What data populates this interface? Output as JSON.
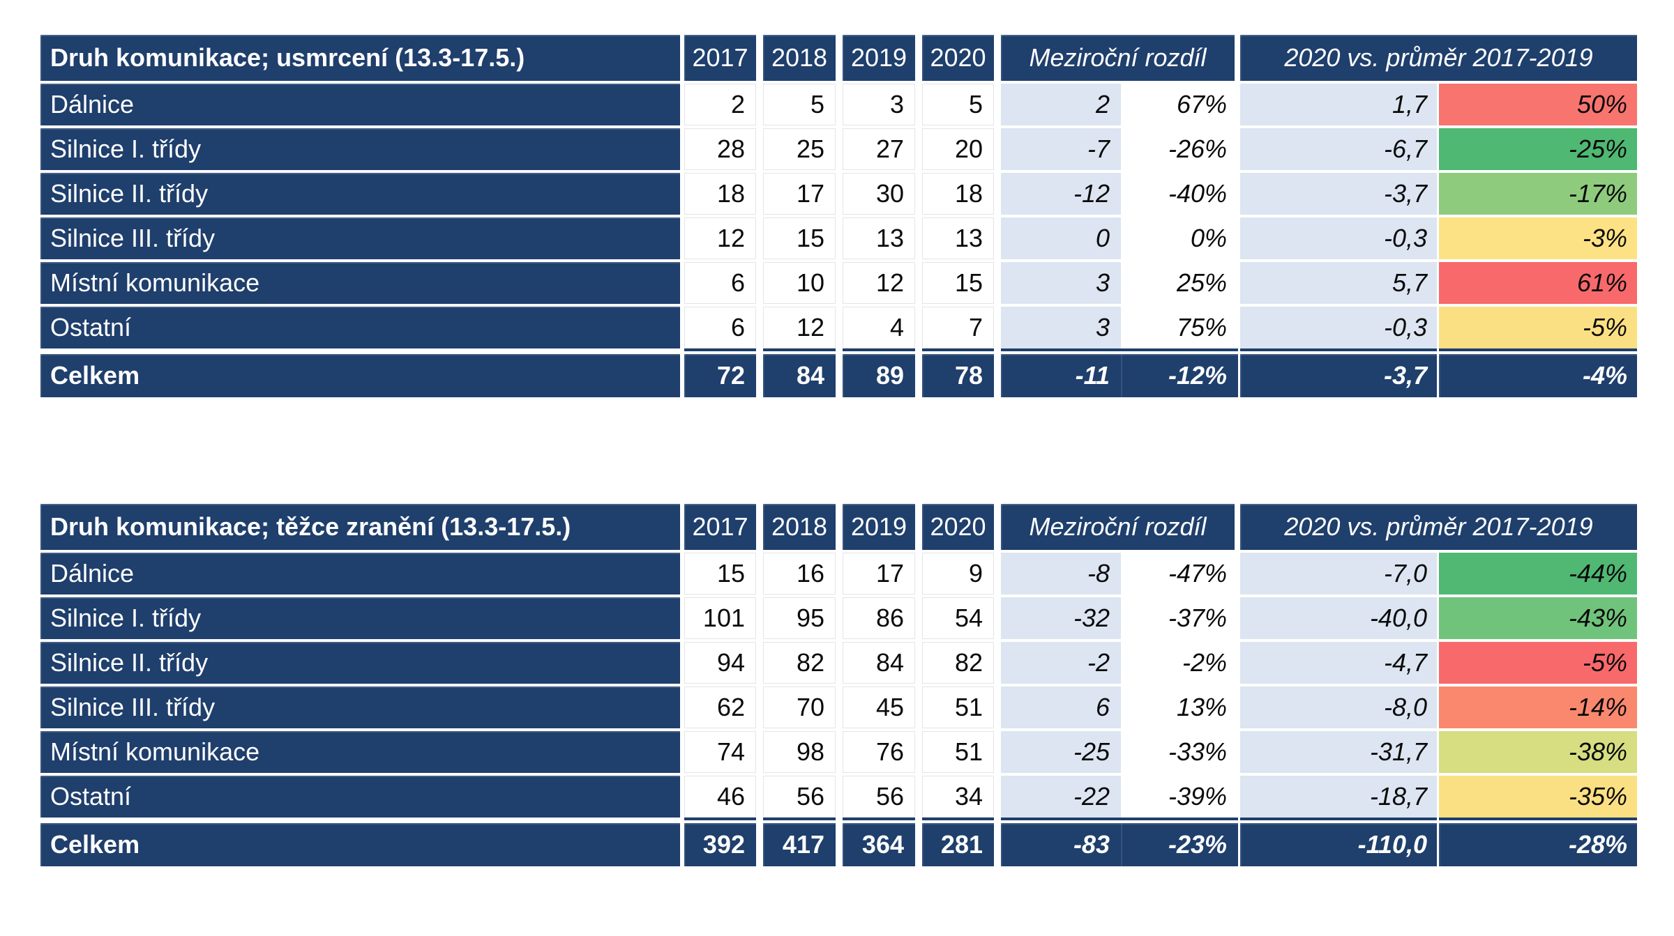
{
  "colors": {
    "header_navy": "#1F3F6C",
    "light_blue_band": "#DCE5F1",
    "scale_red": "#F8696B",
    "scale_yellow": "#FBE083",
    "scale_green": "#50B873"
  },
  "tables": [
    {
      "title": "Druh komunikace; usmrcení (13.3-17.5.)",
      "years": [
        "2017",
        "2018",
        "2019",
        "2020"
      ],
      "diff_header": "Meziroční rozdíl",
      "vs_header": "2020 vs. průměr 2017-2019",
      "rows": [
        {
          "label": "Dálnice",
          "values": [
            "2",
            "5",
            "3",
            "5"
          ],
          "diff_abs": "2",
          "diff_pct": "67%",
          "vs_abs": "1,7",
          "vs_pct": "50%",
          "vs_pct_color": "#F8746F"
        },
        {
          "label": "Silnice I. třídy",
          "values": [
            "28",
            "25",
            "27",
            "20"
          ],
          "diff_abs": "-7",
          "diff_pct": "-26%",
          "vs_abs": "-6,7",
          "vs_pct": "-25%",
          "vs_pct_color": "#4FB873"
        },
        {
          "label": "Silnice II. třídy",
          "values": [
            "18",
            "17",
            "30",
            "18"
          ],
          "diff_abs": "-12",
          "diff_pct": "-40%",
          "vs_abs": "-3,7",
          "vs_pct": "-17%",
          "vs_pct_color": "#8FCB7D"
        },
        {
          "label": "Silnice III. třídy",
          "values": [
            "12",
            "15",
            "13",
            "13"
          ],
          "diff_abs": "0",
          "diff_pct": "0%",
          "vs_abs": "-0,3",
          "vs_pct": "-3%",
          "vs_pct_color": "#FCE285"
        },
        {
          "label": "Místní komunikace",
          "values": [
            "6",
            "10",
            "12",
            "15"
          ],
          "diff_abs": "3",
          "diff_pct": "25%",
          "vs_abs": "5,7",
          "vs_pct": "61%",
          "vs_pct_color": "#F8696B"
        },
        {
          "label": "Ostatní",
          "values": [
            "6",
            "12",
            "4",
            "7"
          ],
          "diff_abs": "3",
          "diff_pct": "75%",
          "vs_abs": "-0,3",
          "vs_pct": "-5%",
          "vs_pct_color": "#FBE083"
        }
      ],
      "total": {
        "label": "Celkem",
        "values": [
          "72",
          "84",
          "89",
          "78"
        ],
        "diff_abs": "-11",
        "diff_pct": "-12%",
        "vs_abs": "-3,7",
        "vs_pct": "-4%"
      }
    },
    {
      "title": "Druh komunikace; těžce zranění (13.3-17.5.)",
      "years": [
        "2017",
        "2018",
        "2019",
        "2020"
      ],
      "diff_header": "Meziroční rozdíl",
      "vs_header": "2020 vs. průměr 2017-2019",
      "rows": [
        {
          "label": "Dálnice",
          "values": [
            "15",
            "16",
            "17",
            "9"
          ],
          "diff_abs": "-8",
          "diff_pct": "-47%",
          "vs_abs": "-7,0",
          "vs_pct": "-44%",
          "vs_pct_color": "#50B873"
        },
        {
          "label": "Silnice I. třídy",
          "values": [
            "101",
            "95",
            "86",
            "54"
          ],
          "diff_abs": "-32",
          "diff_pct": "-37%",
          "vs_abs": "-40,0",
          "vs_pct": "-43%",
          "vs_pct_color": "#70C37B"
        },
        {
          "label": "Silnice II. třídy",
          "values": [
            "94",
            "82",
            "84",
            "82"
          ],
          "diff_abs": "-2",
          "diff_pct": "-2%",
          "vs_abs": "-4,7",
          "vs_pct": "-5%",
          "vs_pct_color": "#F8696B"
        },
        {
          "label": "Silnice III. třídy",
          "values": [
            "62",
            "70",
            "45",
            "51"
          ],
          "diff_abs": "6",
          "diff_pct": "13%",
          "vs_abs": "-8,0",
          "vs_pct": "-14%",
          "vs_pct_color": "#F9886F"
        },
        {
          "label": "Místní komunikace",
          "values": [
            "74",
            "98",
            "76",
            "51"
          ],
          "diff_abs": "-25",
          "diff_pct": "-33%",
          "vs_abs": "-31,7",
          "vs_pct": "-38%",
          "vs_pct_color": "#D6DE81"
        },
        {
          "label": "Ostatní",
          "values": [
            "46",
            "56",
            "56",
            "34"
          ],
          "diff_abs": "-22",
          "diff_pct": "-39%",
          "vs_abs": "-18,7",
          "vs_pct": "-35%",
          "vs_pct_color": "#FBE083"
        }
      ],
      "total": {
        "label": "Celkem",
        "values": [
          "392",
          "417",
          "364",
          "281"
        ],
        "diff_abs": "-83",
        "diff_pct": "-23%",
        "vs_abs": "-110,0",
        "vs_pct": "-28%"
      }
    }
  ]
}
